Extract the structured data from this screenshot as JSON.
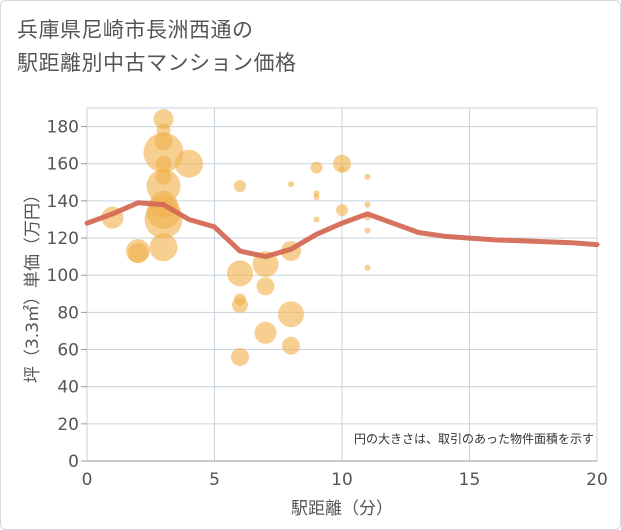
{
  "chart_data": {
    "type": "scatter",
    "title": [
      "兵庫県尼崎市長洲西通の",
      "駅距離別中古マンション価格"
    ],
    "xlabel": "駅距離（分）",
    "ylabel": "坪（3.3㎡）単価（万円）",
    "xlim": [
      0,
      20
    ],
    "ylim": [
      0,
      190
    ],
    "xticks": [
      0,
      5,
      10,
      15,
      20
    ],
    "yticks": [
      0,
      20,
      40,
      60,
      80,
      100,
      120,
      140,
      160,
      180
    ],
    "grid": true,
    "note": "円の大きさは、取引のあった物件面積を示す",
    "colors": {
      "bubble": "#f0b24e",
      "line": "#d46a55",
      "grid": "#c8d3dc"
    },
    "bubbles": [
      {
        "x": 1,
        "y": 131,
        "s": 11
      },
      {
        "x": 2,
        "y": 113,
        "s": 12
      },
      {
        "x": 2,
        "y": 112,
        "s": 10
      },
      {
        "x": 3,
        "y": 184,
        "s": 10
      },
      {
        "x": 3,
        "y": 178,
        "s": 7
      },
      {
        "x": 3,
        "y": 172,
        "s": 9
      },
      {
        "x": 3,
        "y": 166,
        "s": 20
      },
      {
        "x": 3,
        "y": 160,
        "s": 8
      },
      {
        "x": 3,
        "y": 153,
        "s": 8
      },
      {
        "x": 3,
        "y": 148,
        "s": 17
      },
      {
        "x": 3,
        "y": 138,
        "s": 14
      },
      {
        "x": 3,
        "y": 134,
        "s": 17
      },
      {
        "x": 3,
        "y": 130,
        "s": 19
      },
      {
        "x": 3,
        "y": 115,
        "s": 14
      },
      {
        "x": 4,
        "y": 160,
        "s": 14
      },
      {
        "x": 6,
        "y": 148,
        "s": 6
      },
      {
        "x": 6,
        "y": 101,
        "s": 13
      },
      {
        "x": 6,
        "y": 87,
        "s": 6
      },
      {
        "x": 6,
        "y": 84,
        "s": 8
      },
      {
        "x": 6,
        "y": 56,
        "s": 9
      },
      {
        "x": 7,
        "y": 106,
        "s": 13
      },
      {
        "x": 7,
        "y": 94,
        "s": 9
      },
      {
        "x": 7,
        "y": 69,
        "s": 11
      },
      {
        "x": 8,
        "y": 149,
        "s": 3
      },
      {
        "x": 8,
        "y": 113,
        "s": 10
      },
      {
        "x": 8,
        "y": 79,
        "s": 13
      },
      {
        "x": 8,
        "y": 62,
        "s": 9
      },
      {
        "x": 9,
        "y": 158,
        "s": 6
      },
      {
        "x": 9,
        "y": 144,
        "s": 3
      },
      {
        "x": 9,
        "y": 142,
        "s": 3
      },
      {
        "x": 9,
        "y": 130,
        "s": 3
      },
      {
        "x": 10,
        "y": 160,
        "s": 9
      },
      {
        "x": 10,
        "y": 157,
        "s": 3
      },
      {
        "x": 10,
        "y": 135,
        "s": 6
      },
      {
        "x": 11,
        "y": 153,
        "s": 3
      },
      {
        "x": 11,
        "y": 138,
        "s": 3
      },
      {
        "x": 11,
        "y": 131,
        "s": 3
      },
      {
        "x": 11,
        "y": 124,
        "s": 3
      },
      {
        "x": 11,
        "y": 104,
        "s": 3
      }
    ],
    "trend_x": [
      0,
      1,
      2,
      3,
      4,
      5,
      6,
      7,
      8,
      9,
      10,
      11,
      12,
      13,
      14,
      15,
      16,
      17,
      18,
      19,
      20
    ],
    "trend_y": [
      128,
      133,
      139,
      138,
      130,
      126,
      113,
      110,
      114,
      122,
      128,
      133,
      128,
      123,
      121,
      120,
      119,
      118.5,
      118,
      117.5,
      116.5
    ]
  }
}
